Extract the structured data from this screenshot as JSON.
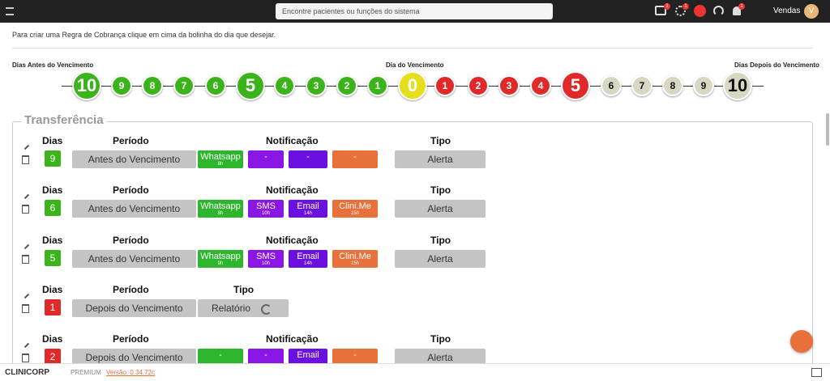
{
  "topbar": {
    "search_placeholder": "Encontre pacientes ou funções do sistema",
    "badges": [
      "1",
      "1",
      "1"
    ],
    "user": "Vendas",
    "avatar": "V"
  },
  "intro": {
    "subtitle": "Para criar uma Regra de Cobrança clique em cima da bolinha do dia que desejar."
  },
  "timeline": {
    "before_label": "Dias Antes do Vencimento",
    "due_label": "Dia do Vencimento",
    "after_label": "Dias Depois do Vencimento",
    "before": [
      "10",
      "9",
      "8",
      "7",
      "6",
      "5",
      "4",
      "3",
      "2",
      "1"
    ],
    "due": "0",
    "after": [
      "1",
      "2",
      "3",
      "4",
      "5",
      "6",
      "7",
      "8",
      "9",
      "10"
    ]
  },
  "section": {
    "title": "Transferência",
    "headers": {
      "dias": "Dias",
      "periodo": "Período",
      "notificacao": "Notificação",
      "tipo": "Tipo"
    },
    "rows": [
      {
        "dias": "9",
        "periodo": "Antes do Vencimento",
        "notifications": [
          {
            "label": "Whatsapp",
            "time": "8h"
          },
          {
            "label": "-"
          },
          {
            "label": "-"
          },
          {
            "label": "-"
          }
        ],
        "tipo": "Alerta"
      },
      {
        "dias": "6",
        "periodo": "Antes do Vencimento",
        "notifications": [
          {
            "label": "Whatsapp",
            "time": "8h"
          },
          {
            "label": "SMS",
            "time": "10h"
          },
          {
            "label": "Email",
            "time": "14h"
          },
          {
            "label": "Clini.Me",
            "time": "15h"
          }
        ],
        "tipo": "Alerta"
      },
      {
        "dias": "5",
        "periodo": "Antes do Vencimento",
        "notifications": [
          {
            "label": "Whatsapp",
            "time": "9h"
          },
          {
            "label": "SMS",
            "time": "10h"
          },
          {
            "label": "Email",
            "time": "14h"
          },
          {
            "label": "Clini.Me",
            "time": "15h"
          }
        ],
        "tipo": "Alerta"
      },
      {
        "dias": "1",
        "periodo": "Depois do Vencimento",
        "tipo": "Relatório"
      },
      {
        "dias": "2",
        "periodo": "Depois do Vencimento",
        "notifications": [
          {
            "label": "-"
          },
          {
            "label": "-"
          },
          {
            "label": "Email"
          },
          {
            "label": "-"
          }
        ],
        "tipo": "Alerta"
      }
    ]
  },
  "footer": {
    "brand": "CLINICORP",
    "plan": "PREMIUM",
    "version": "Versão: 0.34.72c"
  }
}
